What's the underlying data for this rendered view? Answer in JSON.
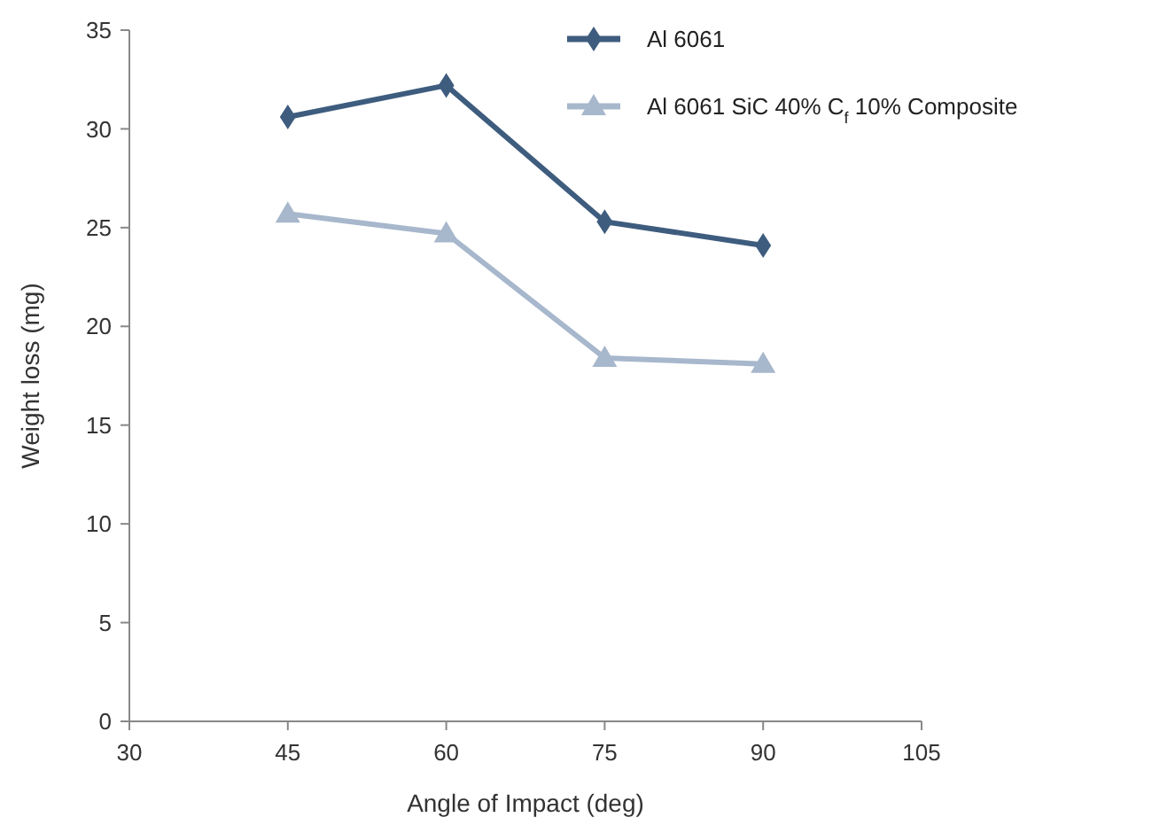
{
  "chart_data": {
    "type": "line",
    "xlabel": "Angle of Impact (deg)",
    "ylabel": "Weight loss (mg)",
    "x": [
      45,
      60,
      75,
      90
    ],
    "series": [
      {
        "name": "Al 6061",
        "color": "#3e5c7e",
        "values": [
          30.6,
          32.2,
          25.3,
          24.1
        ],
        "marker": "diamond"
      },
      {
        "name": "Al 6061  SiC 40% C$_{f}$ 10% Composite",
        "color": "#a7b7cc",
        "values": [
          25.7,
          24.7,
          18.4,
          18.1
        ],
        "marker": "triangle"
      }
    ],
    "xlim": [
      30,
      105
    ],
    "xticks": [
      30,
      45,
      60,
      75,
      90,
      105
    ],
    "ylim": [
      0,
      35
    ],
    "yticks": [
      0,
      5,
      10,
      15,
      20,
      25,
      30,
      35
    ],
    "legend": "top right",
    "grid": false
  }
}
